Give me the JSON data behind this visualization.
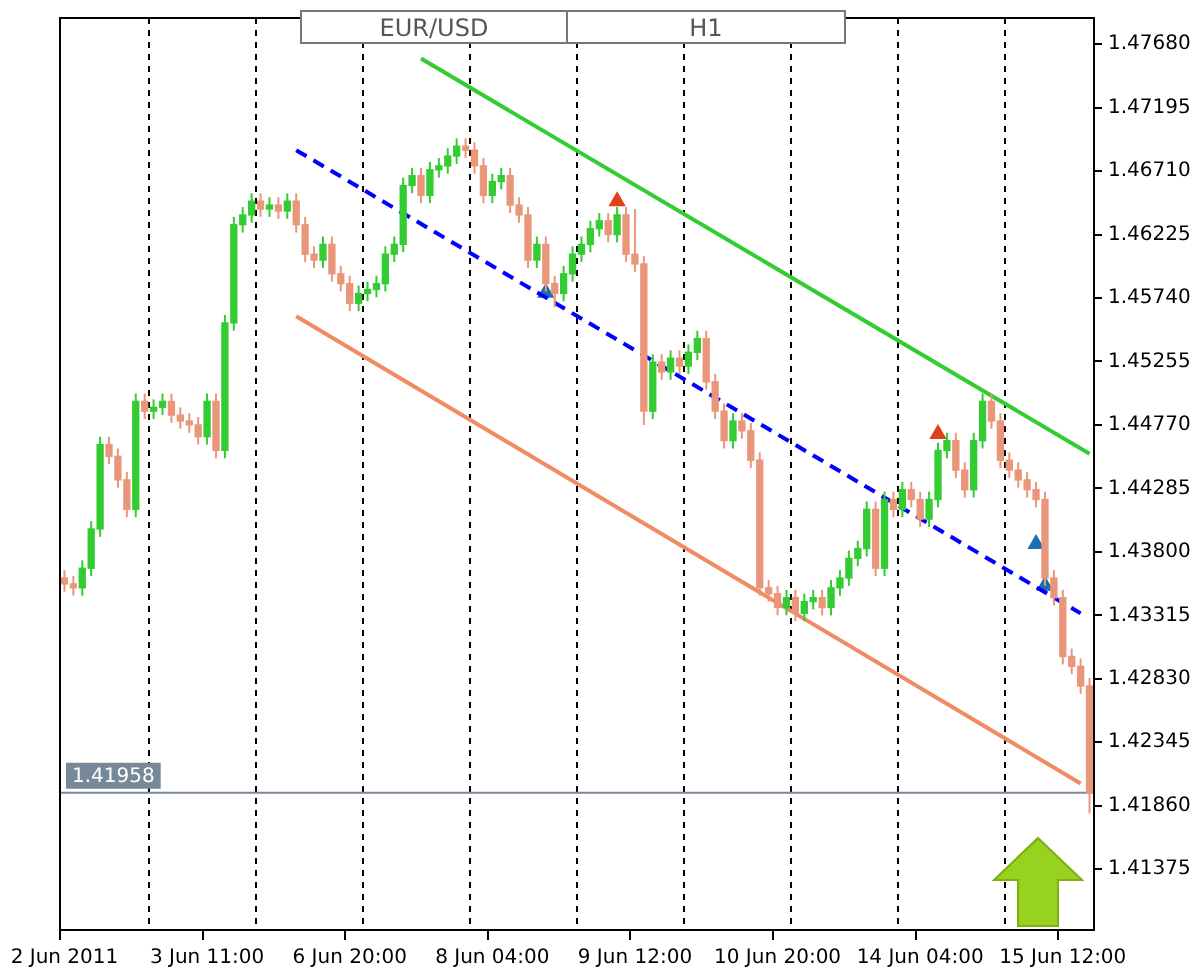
{
  "chart_data": {
    "type": "candlestick",
    "title": "EUR/USD",
    "subtitle": "H1",
    "categories": [
      "2 Jun 2011",
      null,
      null,
      null,
      null,
      null,
      null,
      null,
      null,
      null,
      null,
      null,
      null,
      null,
      null,
      null,
      "3 Jun 11:00",
      null,
      null,
      null,
      null,
      null,
      null,
      null,
      null,
      null,
      null,
      null,
      null,
      null,
      null,
      null,
      "6 Jun 20:00",
      null,
      null,
      null,
      null,
      null,
      null,
      null,
      null,
      null,
      null,
      null,
      null,
      null,
      null,
      null,
      "8 Jun 04:00",
      null,
      null,
      null,
      null,
      null,
      null,
      null,
      null,
      null,
      null,
      null,
      null,
      null,
      null,
      null,
      "9 Jun 12:00",
      null,
      null,
      null,
      null,
      null,
      null,
      null,
      null,
      null,
      null,
      null,
      null,
      null,
      null,
      null,
      "10 Jun 20:00",
      null,
      null,
      null,
      null,
      null,
      null,
      null,
      null,
      null,
      null,
      null,
      null,
      null,
      null,
      null,
      "14 Jun 04:00",
      null,
      null,
      null,
      null,
      null,
      null,
      null,
      null,
      null,
      null,
      null,
      null,
      null,
      null,
      null,
      "15 Jun 12:00",
      null,
      null,
      null
    ],
    "ohlc": [
      [
        1.436,
        1.4366,
        1.43495,
        1.43555
      ],
      [
        1.43555,
        1.43615,
        1.43465,
        1.43525
      ],
      [
        1.43525,
        1.43735,
        1.43465,
        1.43675
      ],
      [
        1.43675,
        1.44035,
        1.43615,
        1.43975
      ],
      [
        1.43975,
        1.4468,
        1.43915,
        1.4462
      ],
      [
        1.4462,
        1.4468,
        1.4447,
        1.4453
      ],
      [
        1.4453,
        1.4459,
        1.4429,
        1.4435
      ],
      [
        1.4435,
        1.4441,
        1.44065,
        1.44125
      ],
      [
        1.44125,
        1.4501,
        1.44065,
        1.4495
      ],
      [
        1.4495,
        1.4501,
        1.44815,
        1.44875
      ],
      [
        1.44875,
        1.44965,
        1.44815,
        1.44905
      ],
      [
        1.44905,
        1.4501,
        1.44845,
        1.4495
      ],
      [
        1.4495,
        1.4501,
        1.44785,
        1.44845
      ],
      [
        1.44845,
        1.44905,
        1.4474,
        1.448
      ],
      [
        1.448,
        1.4486,
        1.4471,
        1.4477
      ],
      [
        1.4477,
        1.4483,
        1.4462,
        1.4468
      ],
      [
        1.4468,
        1.4501,
        1.4462,
        1.4495
      ],
      [
        1.4495,
        1.4501,
        1.44515,
        1.44575
      ],
      [
        1.44575,
        1.4561,
        1.44515,
        1.4555
      ],
      [
        1.4555,
        1.4636,
        1.4549,
        1.463
      ],
      [
        1.463,
        1.46435,
        1.4624,
        1.46375
      ],
      [
        1.46375,
        1.4654,
        1.46315,
        1.4648
      ],
      [
        1.4648,
        1.4654,
        1.4636,
        1.4642
      ],
      [
        1.4642,
        1.4651,
        1.4636,
        1.4645
      ],
      [
        1.4645,
        1.4651,
        1.46345,
        1.46405
      ],
      [
        1.46405,
        1.4654,
        1.46345,
        1.4648
      ],
      [
        1.4648,
        1.4654,
        1.4624,
        1.463
      ],
      [
        1.463,
        1.4636,
        1.46015,
        1.46075
      ],
      [
        1.46075,
        1.46135,
        1.4597,
        1.4603
      ],
      [
        1.4603,
        1.4621,
        1.4597,
        1.4615
      ],
      [
        1.4615,
        1.4621,
        1.45865,
        1.45925
      ],
      [
        1.45925,
        1.45985,
        1.4579,
        1.4585
      ],
      [
        1.4585,
        1.4591,
        1.4564,
        1.457
      ],
      [
        1.457,
        1.45835,
        1.4564,
        1.45775
      ],
      [
        1.45775,
        1.45865,
        1.45715,
        1.45805
      ],
      [
        1.45805,
        1.4591,
        1.45745,
        1.4585
      ],
      [
        1.4585,
        1.46135,
        1.4579,
        1.46075
      ],
      [
        1.46075,
        1.4621,
        1.46015,
        1.4615
      ],
      [
        1.4615,
        1.4666,
        1.4609,
        1.466
      ],
      [
        1.466,
        1.46735,
        1.4654,
        1.46675
      ],
      [
        1.46675,
        1.46735,
        1.46465,
        1.46525
      ],
      [
        1.46525,
        1.4678,
        1.46465,
        1.4672
      ],
      [
        1.4672,
        1.4681,
        1.4666,
        1.4675
      ],
      [
        1.4675,
        1.46885,
        1.4669,
        1.46825
      ],
      [
        1.46825,
        1.4696,
        1.46765,
        1.469
      ],
      [
        1.469,
        1.4696,
        1.4681,
        1.4687
      ],
      [
        1.4687,
        1.4693,
        1.4669,
        1.4675
      ],
      [
        1.4675,
        1.4681,
        1.46465,
        1.46525
      ],
      [
        1.46525,
        1.4669,
        1.46465,
        1.4663
      ],
      [
        1.4663,
        1.46735,
        1.4657,
        1.46675
      ],
      [
        1.46675,
        1.46735,
        1.4639,
        1.4645
      ],
      [
        1.4645,
        1.4651,
        1.46315,
        1.46375
      ],
      [
        1.46375,
        1.46435,
        1.4597,
        1.4603
      ],
      [
        1.4603,
        1.4621,
        1.4597,
        1.4615
      ],
      [
        1.4615,
        1.4621,
        1.4579,
        1.4585
      ],
      [
        1.4585,
        1.4591,
        1.4567,
        1.45775
      ],
      [
        1.45775,
        1.45985,
        1.45715,
        1.45925
      ],
      [
        1.45925,
        1.46135,
        1.45865,
        1.46075
      ],
      [
        1.46075,
        1.4621,
        1.46015,
        1.4615
      ],
      [
        1.4615,
        1.4633,
        1.4609,
        1.4627
      ],
      [
        1.4627,
        1.4639,
        1.4621,
        1.4633
      ],
      [
        1.4633,
        1.4639,
        1.46165,
        1.46225
      ],
      [
        1.46225,
        1.46435,
        1.46165,
        1.46375
      ],
      [
        1.46375,
        1.46435,
        1.46015,
        1.46075
      ],
      [
        1.46075,
        1.4642,
        1.4594,
        1.46
      ],
      [
        1.46,
        1.4606,
        1.4477,
        1.44875
      ],
      [
        1.44875,
        1.4531,
        1.44815,
        1.4525
      ],
      [
        1.4525,
        1.4531,
        1.45115,
        1.45175
      ],
      [
        1.45175,
        1.4534,
        1.45115,
        1.4528
      ],
      [
        1.4528,
        1.4534,
        1.4516,
        1.4522
      ],
      [
        1.4522,
        1.45385,
        1.4516,
        1.45325
      ],
      [
        1.45325,
        1.4549,
        1.45265,
        1.4543
      ],
      [
        1.4543,
        1.4549,
        1.4504,
        1.451
      ],
      [
        1.451,
        1.4516,
        1.44815,
        1.44875
      ],
      [
        1.44875,
        1.44935,
        1.4459,
        1.4465
      ],
      [
        1.4465,
        1.4486,
        1.4459,
        1.448
      ],
      [
        1.448,
        1.4486,
        1.44665,
        1.44725
      ],
      [
        1.44725,
        1.44785,
        1.4444,
        1.445
      ],
      [
        1.445,
        1.4456,
        1.43465,
        1.43525
      ],
      [
        1.43525,
        1.43585,
        1.4342,
        1.4348
      ],
      [
        1.4348,
        1.4354,
        1.43315,
        1.43375
      ],
      [
        1.43375,
        1.4351,
        1.43315,
        1.4345
      ],
      [
        1.4345,
        1.4351,
        1.4327,
        1.4333
      ],
      [
        1.4333,
        1.4348,
        1.4327,
        1.4342
      ],
      [
        1.4342,
        1.4351,
        1.4336,
        1.4345
      ],
      [
        1.4345,
        1.4351,
        1.43315,
        1.43375
      ],
      [
        1.43375,
        1.43585,
        1.43315,
        1.43525
      ],
      [
        1.43525,
        1.4366,
        1.43465,
        1.436
      ],
      [
        1.436,
        1.4381,
        1.4354,
        1.4375
      ],
      [
        1.4375,
        1.43885,
        1.4369,
        1.43825
      ],
      [
        1.43825,
        1.44185,
        1.43765,
        1.44125
      ],
      [
        1.44125,
        1.44185,
        1.43615,
        1.43675
      ],
      [
        1.43675,
        1.4426,
        1.43615,
        1.442
      ],
      [
        1.442,
        1.4426,
        1.44065,
        1.44125
      ],
      [
        1.44125,
        1.44335,
        1.44065,
        1.44275
      ],
      [
        1.44275,
        1.44335,
        1.4414,
        1.442
      ],
      [
        1.442,
        1.4426,
        1.4399,
        1.4405
      ],
      [
        1.4405,
        1.4426,
        1.4399,
        1.442
      ],
      [
        1.442,
        1.44635,
        1.4414,
        1.44575
      ],
      [
        1.44575,
        1.4471,
        1.44515,
        1.4465
      ],
      [
        1.4465,
        1.4471,
        1.44365,
        1.44425
      ],
      [
        1.44425,
        1.44485,
        1.44215,
        1.44275
      ],
      [
        1.44275,
        1.4471,
        1.44215,
        1.4465
      ],
      [
        1.4465,
        1.4501,
        1.4459,
        1.4495
      ],
      [
        1.4495,
        1.4501,
        1.4474,
        1.448
      ],
      [
        1.448,
        1.4486,
        1.4444,
        1.445
      ],
      [
        1.445,
        1.4456,
        1.44365,
        1.44425
      ],
      [
        1.44425,
        1.44485,
        1.4429,
        1.4435
      ],
      [
        1.4435,
        1.4441,
        1.44215,
        1.44275
      ],
      [
        1.44275,
        1.44335,
        1.4414,
        1.442
      ],
      [
        1.442,
        1.4426,
        1.4354,
        1.436
      ],
      [
        1.436,
        1.4366,
        1.4339,
        1.4345
      ],
      [
        1.4345,
        1.4351,
        1.4294,
        1.43
      ],
      [
        1.43,
        1.4306,
        1.42865,
        1.42925
      ],
      [
        1.42925,
        1.42985,
        1.42715,
        1.42775
      ],
      [
        1.42775,
        1.42835,
        1.418,
        1.41958
      ]
    ],
    "colors": [
      "#e9967a",
      "#e9967a",
      "#33cc33",
      "#33cc33",
      "#33cc33",
      "#e9967a",
      "#e9967a",
      "#e9967a",
      "#33cc33",
      "#e9967a",
      "#33cc33",
      "#33cc33",
      "#e9967a",
      "#e9967a",
      "#e9967a",
      "#e9967a",
      "#33cc33",
      "#e9967a",
      "#33cc33",
      "#33cc33",
      "#33cc33",
      "#33cc33",
      "#e9967a",
      "#33cc33",
      "#e9967a",
      "#33cc33",
      "#e9967a",
      "#e9967a",
      "#e9967a",
      "#33cc33",
      "#e9967a",
      "#e9967a",
      "#e9967a",
      "#33cc33",
      "#33cc33",
      "#33cc33",
      "#33cc33",
      "#33cc33",
      "#33cc33",
      "#33cc33",
      "#e9967a",
      "#33cc33",
      "#33cc33",
      "#33cc33",
      "#33cc33",
      "#e9967a",
      "#e9967a",
      "#e9967a",
      "#33cc33",
      "#33cc33",
      "#e9967a",
      "#e9967a",
      "#e9967a",
      "#33cc33",
      "#e9967a",
      "#e9967a",
      "#33cc33",
      "#33cc33",
      "#33cc33",
      "#33cc33",
      "#33cc33",
      "#e9967a",
      "#33cc33",
      "#e9967a",
      "#e9967a",
      "#e9967a",
      "#33cc33",
      "#e9967a",
      "#33cc33",
      "#e9967a",
      "#33cc33",
      "#33cc33",
      "#e9967a",
      "#e9967a",
      "#e9967a",
      "#33cc33",
      "#e9967a",
      "#e9967a",
      "#e9967a",
      "#e9967a",
      "#e9967a",
      "#33cc33",
      "#e9967a",
      "#33cc33",
      "#33cc33",
      "#e9967a",
      "#33cc33",
      "#33cc33",
      "#33cc33",
      "#33cc33",
      "#33cc33",
      "#e9967a",
      "#33cc33",
      "#e9967a",
      "#33cc33",
      "#e9967a",
      "#e9967a",
      "#33cc33",
      "#33cc33",
      "#33cc33",
      "#e9967a",
      "#e9967a",
      "#33cc33",
      "#33cc33",
      "#e9967a",
      "#e9967a",
      "#e9967a",
      "#e9967a",
      "#e9967a",
      "#e9967a",
      "#e9967a",
      "#e9967a",
      "#e9967a",
      "#e9967a",
      "#e9967a",
      "#e9967a"
    ],
    "series": [
      {
        "type": "line",
        "color": "#33cc33",
        "values": [
          null,
          null,
          null,
          null,
          null,
          null,
          null,
          null,
          null,
          null,
          null,
          null,
          null,
          null,
          null,
          null,
          null,
          null,
          null,
          null,
          null,
          null,
          null,
          null,
          null,
          null,
          null,
          null,
          null,
          null,
          null,
          null,
          null,
          null,
          null,
          null,
          null,
          null,
          null,
          null,
          1.4757,
          null,
          null,
          null,
          null,
          null,
          null,
          null,
          null,
          null,
          null,
          null,
          null,
          null,
          null,
          null,
          null,
          null,
          null,
          null,
          null,
          null,
          null,
          null,
          null,
          null,
          null,
          null,
          null,
          null,
          null,
          null,
          null,
          null,
          null,
          null,
          null,
          null,
          null,
          null,
          null,
          null,
          null,
          null,
          null,
          null,
          null,
          null,
          null,
          null,
          null,
          null,
          null,
          null,
          null,
          null,
          null,
          null,
          null,
          null,
          null,
          null,
          null,
          null,
          null,
          null,
          null,
          null,
          null,
          null,
          null,
          null,
          null,
          null,
          null,
          1.4455
        ]
      },
      {
        "type": "line",
        "color": "#0000ff",
        "line_style": "dashed",
        "values": [
          null,
          null,
          null,
          null,
          null,
          null,
          null,
          null,
          null,
          null,
          null,
          null,
          null,
          null,
          null,
          null,
          null,
          null,
          null,
          null,
          null,
          null,
          null,
          null,
          null,
          null,
          1.4687,
          null,
          null,
          null,
          null,
          null,
          null,
          null,
          null,
          null,
          null,
          null,
          null,
          null,
          null,
          null,
          null,
          null,
          null,
          null,
          null,
          null,
          null,
          null,
          null,
          null,
          null,
          null,
          null,
          null,
          null,
          null,
          null,
          null,
          null,
          null,
          null,
          null,
          null,
          null,
          null,
          null,
          null,
          null,
          null,
          null,
          null,
          null,
          null,
          null,
          null,
          null,
          null,
          null,
          null,
          null,
          null,
          null,
          null,
          null,
          null,
          null,
          null,
          null,
          null,
          null,
          null,
          null,
          null,
          null,
          null,
          null,
          null,
          null,
          null,
          null,
          null,
          null,
          null,
          null,
          null,
          null,
          null,
          null,
          null,
          null,
          null,
          null,
          1.4333,
          null
        ]
      },
      {
        "type": "line",
        "color": "#f08c64",
        "values": [
          null,
          null,
          null,
          null,
          null,
          null,
          null,
          null,
          null,
          null,
          null,
          null,
          null,
          null,
          null,
          null,
          null,
          null,
          null,
          null,
          null,
          null,
          null,
          null,
          null,
          null,
          1.456,
          null,
          null,
          null,
          null,
          null,
          null,
          null,
          null,
          null,
          null,
          null,
          null,
          null,
          null,
          null,
          null,
          null,
          null,
          null,
          null,
          null,
          null,
          null,
          null,
          null,
          null,
          null,
          null,
          null,
          null,
          null,
          null,
          null,
          null,
          null,
          null,
          null,
          null,
          null,
          null,
          null,
          null,
          null,
          null,
          null,
          null,
          null,
          null,
          null,
          null,
          null,
          null,
          null,
          null,
          null,
          null,
          null,
          null,
          null,
          null,
          null,
          null,
          null,
          null,
          null,
          null,
          null,
          null,
          null,
          null,
          null,
          null,
          null,
          null,
          null,
          null,
          null,
          null,
          null,
          null,
          null,
          null,
          null,
          null,
          null,
          null,
          null,
          1.4203,
          null
        ]
      },
      {
        "type": "scatter",
        "color": "#e0401a",
        "marker": "triangle",
        "values": [
          null,
          null,
          null,
          null,
          null,
          null,
          null,
          null,
          null,
          null,
          null,
          null,
          null,
          null,
          null,
          null,
          null,
          null,
          null,
          null,
          null,
          null,
          null,
          null,
          null,
          null,
          null,
          null,
          null,
          null,
          null,
          null,
          null,
          null,
          null,
          null,
          null,
          null,
          null,
          null,
          null,
          null,
          null,
          null,
          null,
          null,
          null,
          null,
          null,
          null,
          null,
          null,
          null,
          null,
          null,
          null,
          null,
          null,
          null,
          null,
          null,
          null,
          1.4648,
          null,
          null,
          null,
          null,
          null,
          null,
          null,
          null,
          null,
          null,
          null,
          null,
          null,
          null,
          null,
          null,
          null,
          null,
          null,
          null,
          null,
          null,
          null,
          null,
          null,
          null,
          null,
          null,
          null,
          null,
          null,
          null,
          null,
          null,
          null,
          1.447,
          null,
          null,
          null,
          null,
          null,
          null,
          null,
          null,
          null,
          null,
          null,
          null,
          null,
          null,
          null,
          null,
          null
        ]
      },
      {
        "type": "scatter",
        "color": "#1a6fb0",
        "marker": "triangle",
        "values": [
          null,
          null,
          null,
          null,
          null,
          null,
          null,
          null,
          null,
          null,
          null,
          null,
          null,
          null,
          null,
          null,
          null,
          null,
          null,
          null,
          null,
          null,
          null,
          null,
          null,
          null,
          null,
          null,
          null,
          null,
          null,
          null,
          null,
          null,
          null,
          null,
          null,
          null,
          null,
          null,
          null,
          null,
          null,
          null,
          null,
          null,
          null,
          null,
          null,
          null,
          null,
          null,
          null,
          null,
          1.4578,
          null,
          null,
          null,
          null,
          null,
          null,
          null,
          null,
          null,
          null,
          null,
          null,
          null,
          null,
          null,
          null,
          null,
          null,
          null,
          null,
          null,
          null,
          null,
          null,
          null,
          null,
          null,
          null,
          null,
          null,
          null,
          null,
          null,
          null,
          null,
          null,
          null,
          null,
          null,
          null,
          null,
          null,
          null,
          null,
          null,
          null,
          null,
          null,
          null,
          null,
          null,
          null,
          null,
          null,
          1.4386,
          1.4354,
          null,
          null,
          null,
          null,
          null
        ]
      }
    ],
    "ylim": [
      1.4091,
      1.4788
    ],
    "yticks": [
      {
        "value": 1.4768,
        "label": "1.47680"
      },
      {
        "value": 1.47195,
        "label": "1.47195"
      },
      {
        "value": 1.4671,
        "label": "1.46710"
      },
      {
        "value": 1.46225,
        "label": "1.46225"
      },
      {
        "value": 1.4574,
        "label": "1.45740"
      },
      {
        "value": 1.45255,
        "label": "1.45255"
      },
      {
        "value": 1.4477,
        "label": "1.44770"
      },
      {
        "value": 1.44285,
        "label": "1.44285"
      },
      {
        "value": 1.438,
        "label": "1.43800"
      },
      {
        "value": 1.43315,
        "label": "1.43315"
      },
      {
        "value": 1.4283,
        "label": "1.42830"
      },
      {
        "value": 1.42345,
        "label": "1.42345"
      },
      {
        "value": 1.4186,
        "label": "1.41860"
      },
      {
        "value": 1.41375,
        "label": "1.41375"
      }
    ],
    "ref_lines": [
      {
        "axis": "y",
        "value": 1.41958,
        "label": "1.41958",
        "color": "#778899"
      }
    ],
    "grid": "x"
  }
}
